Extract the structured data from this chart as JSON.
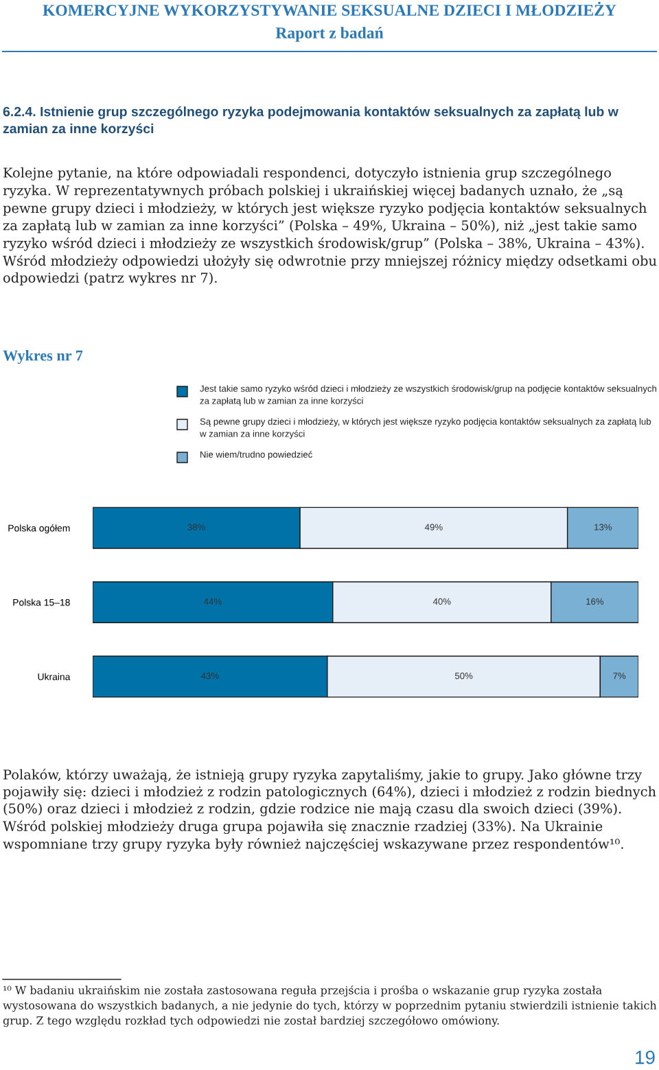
{
  "chart_data": {
    "type": "bar",
    "orientation": "horizontal",
    "stacked": true,
    "title": "Wykres nr 7",
    "categories": [
      "Polska ogółem",
      "Polska 15–18",
      "Ukraina"
    ],
    "series": [
      {
        "name": "Jest takie samo ryzyko wśród dzieci i młodzieży ze wszystkich środowisk/grup na podjęcie kontaktów seksualnych za zapłatą lub w zamian za inne korzyści",
        "color": "#0072a8",
        "values": [
          38,
          44,
          43
        ],
        "value_labels": [
          "38%",
          "44%",
          "43%"
        ]
      },
      {
        "name": "Są pewne grupy dzieci i młodzieży, w których jest większe ryzyko podjęcia kontaktów seksualnych za zapłatą lub w zamian za inne korzyści",
        "color": "#e6eef8",
        "values": [
          49,
          40,
          50
        ],
        "value_labels": [
          "49%",
          "40%",
          "50%"
        ]
      },
      {
        "name": "Nie wiem/trudno powiedzieć",
        "color": "#7ab0d4",
        "values": [
          13,
          16,
          7
        ],
        "value_labels": [
          "13%",
          "16%",
          "7%"
        ]
      }
    ],
    "xlim": [
      0,
      100
    ],
    "tick_labels": "y",
    "legend": "top",
    "annotations": [
      "KOMERCYJNE WYKORZYSTYWANIE SEKSUALNE DZIECI I MŁODZIEŻY",
      "Raport z badań",
      "6.2.4. Istnienie grup szczególnego ryzyka podejmowania kontaktów seksualnych za zapłatą lub w zamian za inne korzyści",
      "Kolejne pytanie, na które odpowiadali respondenci, dotyczyło istnienia grup szczególnego ryzyka. W reprezentatywnych próbach polskiej i ukraińskiej więcej badanych uznało, że „są pewne grupy dzieci i młodzieży, w których jest większe ryzyko podjęcia kontaktów seksualnych za zapłatą lub w zamian za inne korzyści” (Polska – 49%, Ukraina – 50%), niż „jest takie samo ryzyko wśród dzieci i młodzieży ze wszystkich środowisk/grup” (Polska – 38%, Ukraina – 43%). Wśród młodzieży odpowiedzi ułożyły się odwrotnie przy mniejszej różnicy między odsetkami obu odpowiedzi (patrz wykres nr 7).",
      "Polaków, którzy uważają, że istnieją grupy ryzyka zapytaliśmy, jakie to grupy. Jako główne trzy pojawiły się: dzieci i młodzież z rodzin patologicznych (64%), dzieci i młodzież z rodzin biednych (50%) oraz dzieci i młodzież z rodzin, gdzie rodzice nie mają czasu dla swoich dzieci (39%). Wśród polskiej młodzieży druga grupa pojawiła się znacznie rzadziej (33%). Na Ukrainie wspomniane trzy grupy ryzyka były również najczęściej wskazywane przez respondentów¹⁰.",
      "¹⁰ W badaniu ukraińskim nie została zastosowana reguła przejścia i prośba o wskazanie grup ryzyka została wystosowana do wszystkich badanych, a nie jedynie do tych, którzy w poprzednim pytaniu stwierdzili istnienie takich grup. Z tego względu rozkład tych odpowiedzi nie został bardziej szczegółowo omówiony.",
      "19"
    ]
  }
}
